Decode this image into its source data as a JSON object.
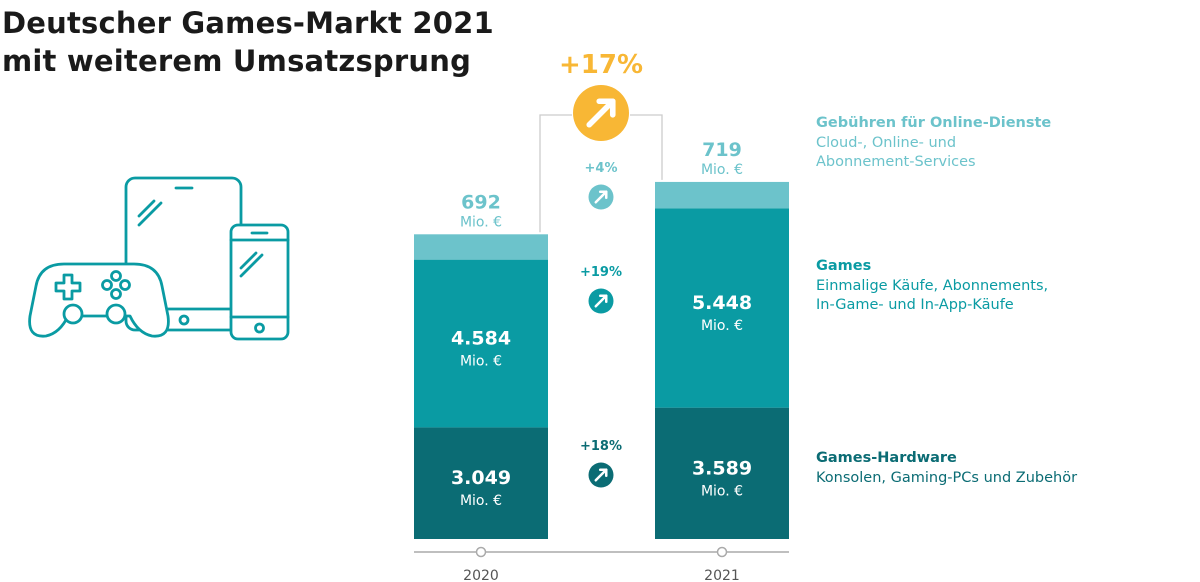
{
  "title_line1": "Deutscher Games-Markt 2021",
  "title_line2": "mit weiterem Umsatzsprung",
  "colors": {
    "online": "#6cc3cb",
    "games": "#0a9ba3",
    "hardware": "#0b6c74",
    "accent": "#f8b735",
    "axis": "#aaaaaa",
    "text_dark": "#1a1a1a"
  },
  "chart_data": {
    "type": "bar",
    "stacked": true,
    "categories": [
      "2020",
      "2021"
    ],
    "unit": "Mio. €",
    "series": [
      {
        "key": "hardware",
        "name": "Games-Hardware",
        "values": [
          3049,
          3589
        ],
        "labels": [
          "3.049",
          "3.589"
        ],
        "growth": "+18%"
      },
      {
        "key": "games",
        "name": "Games",
        "values": [
          4584,
          5448
        ],
        "labels": [
          "4.584",
          "5.448"
        ],
        "growth": "+19%"
      },
      {
        "key": "online",
        "name": "Gebühren für Online-Dienste",
        "values": [
          692,
          719
        ],
        "labels": [
          "692",
          "719"
        ],
        "growth": "+4%"
      }
    ],
    "total_growth": "+17%",
    "value_unit_label": "Mio. €"
  },
  "legend": [
    {
      "key": "online",
      "title": "Gebühren für Online-Dienste",
      "desc_lines": [
        "Cloud-, Online- und",
        "Abonnement-Services"
      ]
    },
    {
      "key": "games",
      "title": "Games",
      "desc_lines": [
        "Einmalige Käufe, Abonnements,",
        "In-Game- und In-App-Käufe"
      ]
    },
    {
      "key": "hardware",
      "title": "Games-Hardware",
      "desc_lines": [
        "Konsolen, Gaming-PCs und Zubehör"
      ]
    }
  ],
  "icons": [
    "gamepad-icon",
    "tablet-icon",
    "smartphone-icon",
    "arrow-up-right-icon"
  ]
}
